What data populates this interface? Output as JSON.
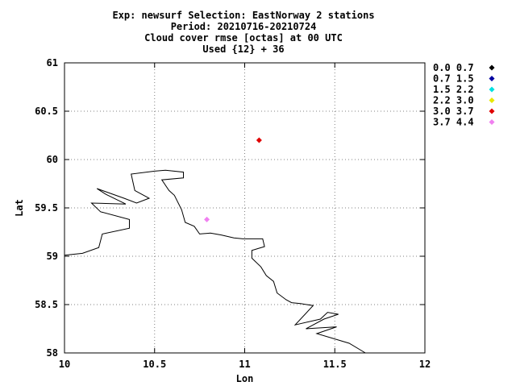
{
  "chart_data": {
    "type": "scatter",
    "title_lines": [
      "Exp: newsurf   Selection: EastNorway      2 stations",
      "Period: 20210716-20210724",
      "Cloud cover rmse [octas] at  00 UTC",
      "Used {12} + 36"
    ],
    "xlabel": "Lon",
    "ylabel": "Lat",
    "xlim": [
      10,
      12
    ],
    "ylim": [
      58,
      61
    ],
    "xticks": [
      10,
      10.5,
      11,
      11.5,
      12
    ],
    "xtick_labels": [
      "10",
      "10.5",
      "11",
      "11.5",
      "12"
    ],
    "yticks": [
      58,
      58.5,
      59,
      59.5,
      60,
      60.5,
      61
    ],
    "ytick_labels": [
      "58",
      "58.5",
      "59",
      "59.5",
      "60",
      "60.5",
      "61"
    ],
    "grid": true,
    "legend_position": "right",
    "legend": [
      {
        "label": "0.0 0.7",
        "color": "#000000"
      },
      {
        "label": "0.7 1.5",
        "color": "#0000a0"
      },
      {
        "label": "1.5 2.2",
        "color": "#00e0e0"
      },
      {
        "label": "2.2 3.0",
        "color": "#e8e800"
      },
      {
        "label": "3.0 3.7",
        "color": "#e00000"
      },
      {
        "label": "3.7 4.4",
        "color": "#f080f0"
      }
    ],
    "points": [
      {
        "lon": 11.08,
        "lat": 60.2,
        "color": "#e00000"
      },
      {
        "lon": 10.79,
        "lat": 59.38,
        "color": "#f080f0"
      }
    ],
    "coastline": [
      [
        10.0,
        59.01
      ],
      [
        10.1,
        59.03
      ],
      [
        10.19,
        59.09
      ],
      [
        10.21,
        59.23
      ],
      [
        10.36,
        59.29
      ],
      [
        10.36,
        59.38
      ],
      [
        10.2,
        59.46
      ],
      [
        10.15,
        59.55
      ],
      [
        10.34,
        59.54
      ],
      [
        10.23,
        59.64
      ],
      [
        10.18,
        59.7
      ],
      [
        10.33,
        59.6
      ],
      [
        10.4,
        59.55
      ],
      [
        10.47,
        59.6
      ],
      [
        10.39,
        59.68
      ],
      [
        10.37,
        59.85
      ],
      [
        10.5,
        59.88
      ],
      [
        10.56,
        59.89
      ],
      [
        10.66,
        59.87
      ],
      [
        10.66,
        59.81
      ],
      [
        10.54,
        59.79
      ],
      [
        10.58,
        59.68
      ],
      [
        10.61,
        59.63
      ],
      [
        10.65,
        59.48
      ],
      [
        10.67,
        59.35
      ],
      [
        10.72,
        59.31
      ],
      [
        10.75,
        59.23
      ],
      [
        10.81,
        59.24
      ],
      [
        10.87,
        59.22
      ],
      [
        10.94,
        59.19
      ],
      [
        10.99,
        59.18
      ],
      [
        11.1,
        59.18
      ],
      [
        11.11,
        59.1
      ],
      [
        11.04,
        59.06
      ],
      [
        11.04,
        58.98
      ],
      [
        11.09,
        58.89
      ],
      [
        11.12,
        58.8
      ],
      [
        11.16,
        58.74
      ],
      [
        11.18,
        58.62
      ],
      [
        11.23,
        58.55
      ],
      [
        11.26,
        58.52
      ],
      [
        11.31,
        58.51
      ],
      [
        11.38,
        58.49
      ],
      [
        11.28,
        58.29
      ],
      [
        11.42,
        58.35
      ],
      [
        11.46,
        58.42
      ],
      [
        11.52,
        58.4
      ],
      [
        11.44,
        58.35
      ],
      [
        11.34,
        58.25
      ],
      [
        11.51,
        58.27
      ],
      [
        11.4,
        58.2
      ],
      [
        11.58,
        58.1
      ],
      [
        11.67,
        58.0
      ]
    ]
  }
}
